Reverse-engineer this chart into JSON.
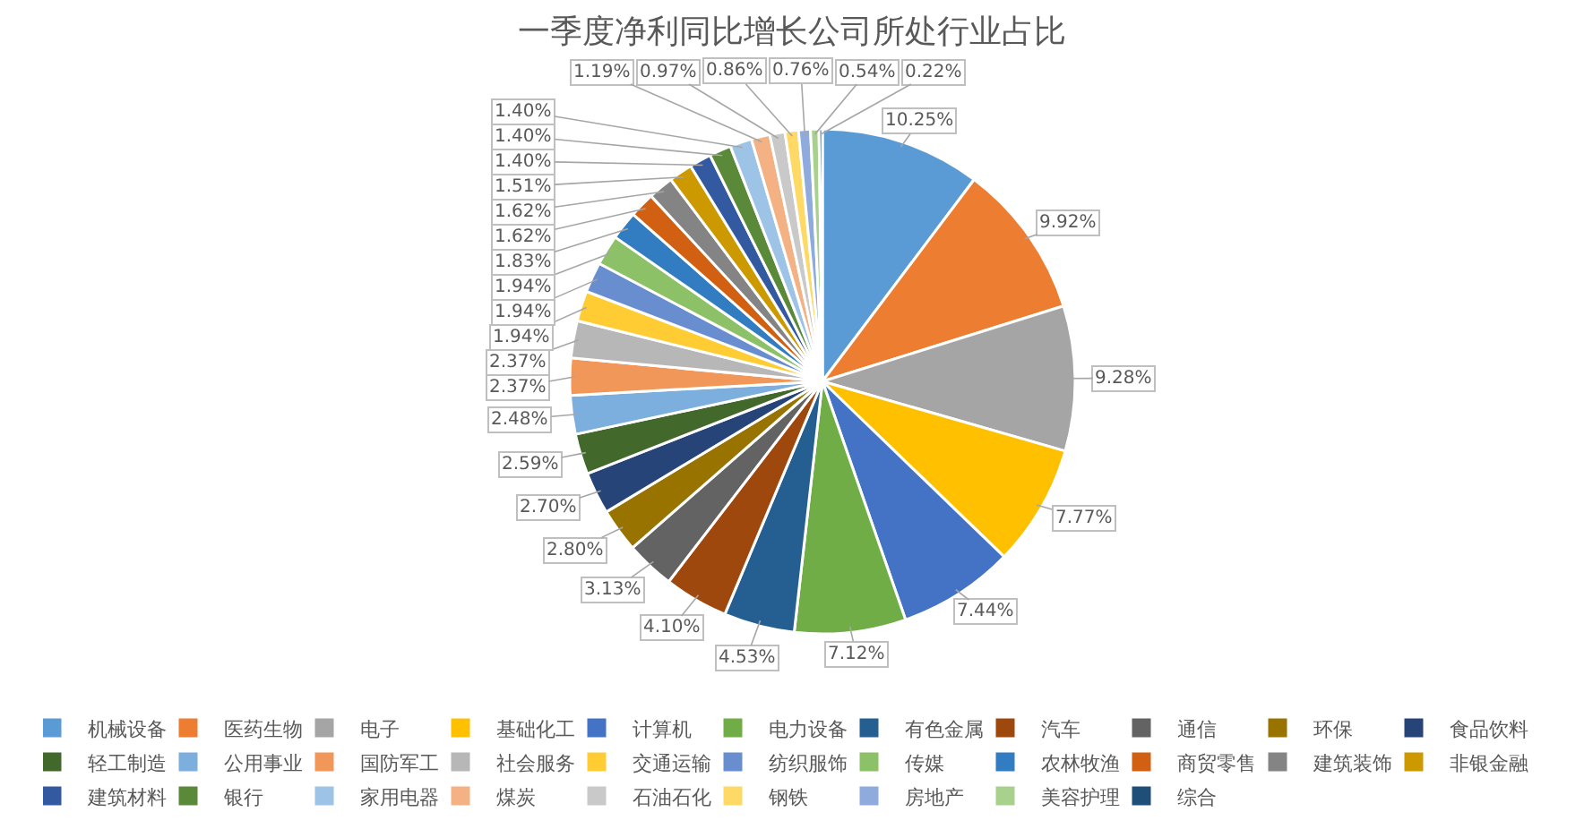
{
  "chart_data": {
    "type": "pie",
    "title": "一季度净利同比增长公司所处行业占比",
    "categories": [
      "机械设备",
      "医药生物",
      "电子",
      "基础化工",
      "计算机",
      "电力设备",
      "有色金属",
      "汽车",
      "通信",
      "环保",
      "食品饮料",
      "轻工制造",
      "公用事业",
      "国防军工",
      "社会服务",
      "交通运输",
      "纺织服饰",
      "传媒",
      "农林牧渔",
      "商贸零售",
      "建筑装饰",
      "非银金融",
      "建筑材料",
      "银行",
      "家用电器",
      "煤炭",
      "石油石化",
      "钢铁",
      "房地产",
      "美容护理",
      "综合"
    ],
    "values": [
      10.25,
      9.92,
      9.28,
      7.77,
      7.44,
      7.12,
      4.53,
      4.1,
      3.13,
      2.8,
      2.7,
      2.59,
      2.48,
      2.37,
      2.37,
      1.94,
      1.94,
      1.94,
      1.83,
      1.62,
      1.62,
      1.51,
      1.4,
      1.4,
      1.4,
      1.19,
      0.97,
      0.86,
      0.76,
      0.54,
      0.22
    ],
    "value_labels": [
      "10.25%",
      "9.92%",
      "9.28%",
      "7.77%",
      "7.44%",
      "7.12%",
      "4.53%",
      "4.10%",
      "3.13%",
      "2.80%",
      "2.70%",
      "2.59%",
      "2.48%",
      "2.37%",
      "2.37%",
      "1.94%",
      "1.94%",
      "1.94%",
      "1.83%",
      "1.62%",
      "1.62%",
      "1.51%",
      "1.40%",
      "1.40%",
      "1.40%",
      "1.19%",
      "0.97%",
      "0.86%",
      "0.76%",
      "0.54%",
      "0.22%"
    ],
    "colors": [
      "#5b9bd5",
      "#ed7d31",
      "#a5a5a5",
      "#ffc000",
      "#4472c4",
      "#70ad47",
      "#255e91",
      "#9e480e",
      "#636363",
      "#997300",
      "#264478",
      "#43682b",
      "#7cafdd",
      "#f1975a",
      "#b7b7b7",
      "#ffcd33",
      "#698ed0",
      "#8cc168",
      "#327dc2",
      "#d26012",
      "#848484",
      "#cc9a00",
      "#335aa1",
      "#5a8a39",
      "#9dc3e6",
      "#f4b183",
      "#c9c9c9",
      "#ffd966",
      "#8faadc",
      "#a9d18e",
      "#1f4e79"
    ],
    "legend": "bottom"
  }
}
